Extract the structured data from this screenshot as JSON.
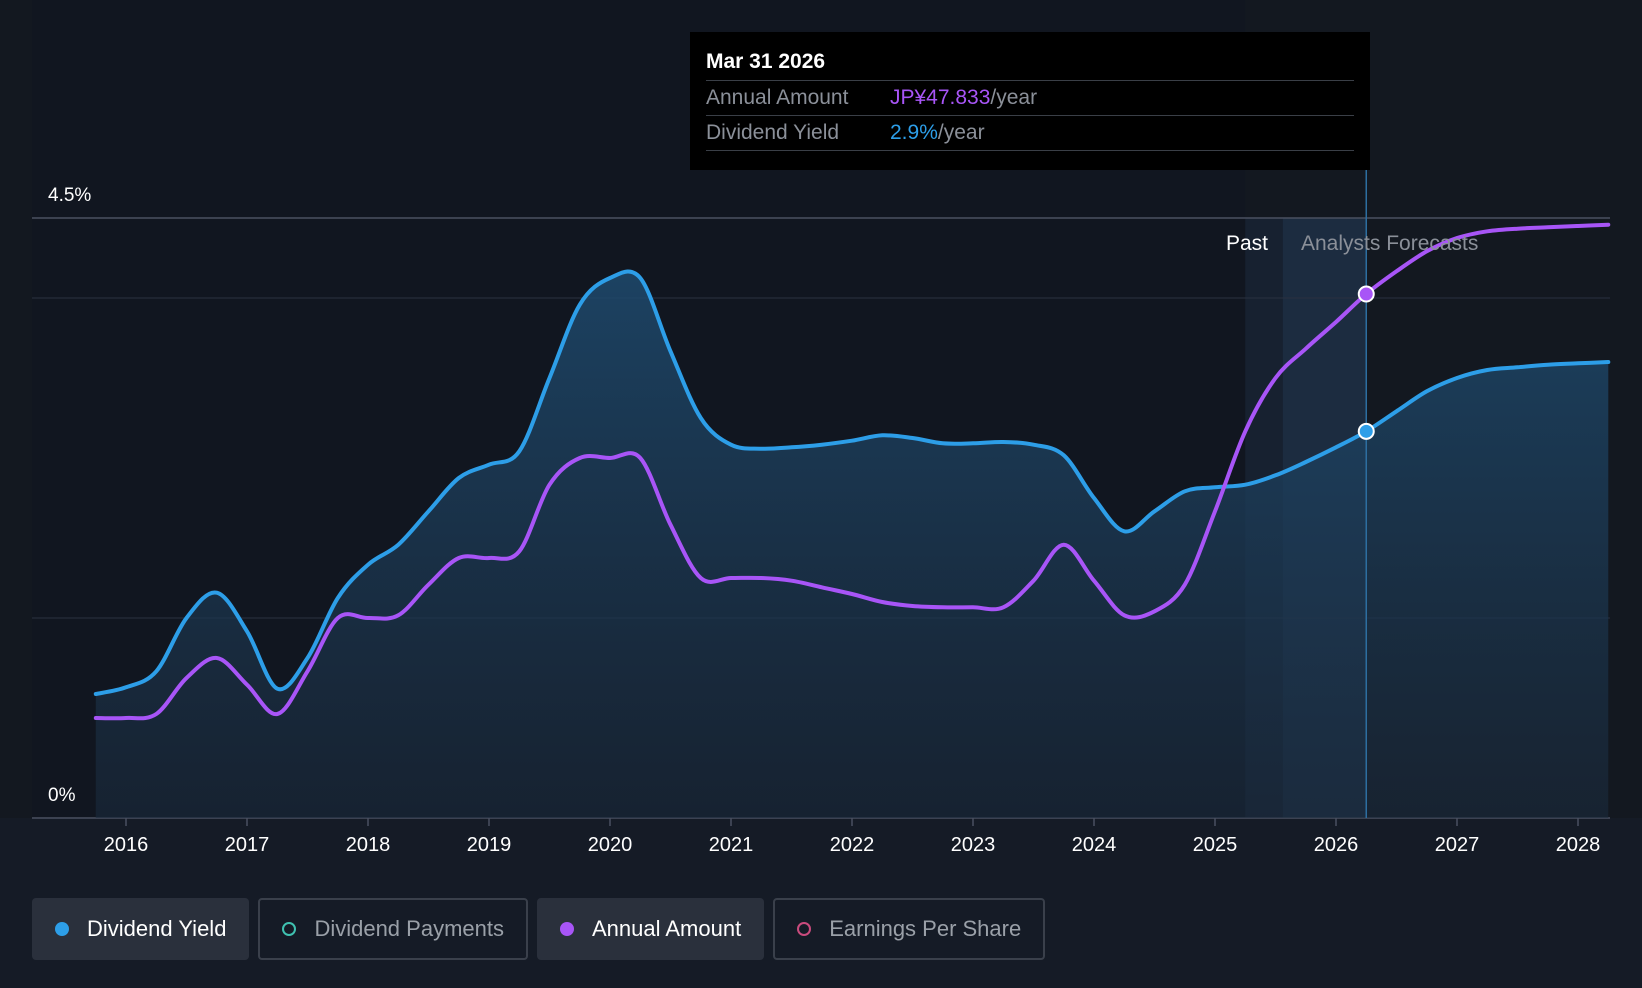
{
  "chart_data": {
    "type": "line",
    "y_axis": {
      "top_label": "4.5%",
      "bottom_label": "0%",
      "ylim": [
        0,
        4.5
      ]
    },
    "x_axis": {
      "ticks": [
        "2016",
        "2017",
        "2018",
        "2019",
        "2020",
        "2021",
        "2022",
        "2023",
        "2024",
        "2025",
        "2026",
        "2027",
        "2028"
      ],
      "xlim": [
        2015.75,
        2028.25
      ]
    },
    "regions": {
      "past_label": "Past",
      "forecast_label": "Analysts Forecasts",
      "past_end": 2025.25,
      "forecast_start": 2025.56,
      "cursor": 2026.25
    },
    "series": [
      {
        "name": "Dividend Yield",
        "color": "#2d9ee8",
        "unit": "%",
        "area": true,
        "points": [
          [
            2015.75,
            0.93
          ],
          [
            2016.0,
            0.98
          ],
          [
            2016.25,
            1.1
          ],
          [
            2016.5,
            1.5
          ],
          [
            2016.75,
            1.69
          ],
          [
            2017.0,
            1.4
          ],
          [
            2017.25,
            0.97
          ],
          [
            2017.5,
            1.2
          ],
          [
            2017.75,
            1.65
          ],
          [
            2018.0,
            1.9
          ],
          [
            2018.25,
            2.05
          ],
          [
            2018.5,
            2.3
          ],
          [
            2018.75,
            2.55
          ],
          [
            2019.0,
            2.65
          ],
          [
            2019.25,
            2.75
          ],
          [
            2019.5,
            3.3
          ],
          [
            2019.75,
            3.85
          ],
          [
            2020.0,
            4.05
          ],
          [
            2020.25,
            4.05
          ],
          [
            2020.5,
            3.5
          ],
          [
            2020.75,
            3.0
          ],
          [
            2021.0,
            2.8
          ],
          [
            2021.25,
            2.77
          ],
          [
            2021.5,
            2.78
          ],
          [
            2021.75,
            2.8
          ],
          [
            2022.0,
            2.83
          ],
          [
            2022.25,
            2.87
          ],
          [
            2022.5,
            2.85
          ],
          [
            2022.75,
            2.81
          ],
          [
            2023.0,
            2.81
          ],
          [
            2023.25,
            2.82
          ],
          [
            2023.5,
            2.8
          ],
          [
            2023.75,
            2.72
          ],
          [
            2024.0,
            2.4
          ],
          [
            2024.25,
            2.15
          ],
          [
            2024.5,
            2.3
          ],
          [
            2024.75,
            2.45
          ],
          [
            2025.0,
            2.48
          ],
          [
            2025.25,
            2.5
          ],
          [
            2025.5,
            2.57
          ],
          [
            2025.75,
            2.67
          ],
          [
            2026.0,
            2.78
          ],
          [
            2026.25,
            2.9
          ],
          [
            2026.5,
            3.05
          ],
          [
            2026.75,
            3.2
          ],
          [
            2027.0,
            3.3
          ],
          [
            2027.25,
            3.36
          ],
          [
            2027.5,
            3.38
          ],
          [
            2027.75,
            3.4
          ],
          [
            2028.0,
            3.41
          ],
          [
            2028.25,
            3.42
          ]
        ]
      },
      {
        "name": "Annual Amount",
        "color": "#a855f7",
        "unit": "JP¥",
        "area": false,
        "points": [
          [
            2015.75,
            0.75
          ],
          [
            2016.0,
            0.75
          ],
          [
            2016.25,
            0.78
          ],
          [
            2016.5,
            1.05
          ],
          [
            2016.75,
            1.2
          ],
          [
            2017.0,
            1.0
          ],
          [
            2017.25,
            0.78
          ],
          [
            2017.5,
            1.1
          ],
          [
            2017.75,
            1.5
          ],
          [
            2018.0,
            1.5
          ],
          [
            2018.25,
            1.52
          ],
          [
            2018.5,
            1.75
          ],
          [
            2018.75,
            1.95
          ],
          [
            2019.0,
            1.95
          ],
          [
            2019.25,
            2.0
          ],
          [
            2019.5,
            2.5
          ],
          [
            2019.75,
            2.7
          ],
          [
            2020.0,
            2.7
          ],
          [
            2020.25,
            2.7
          ],
          [
            2020.5,
            2.2
          ],
          [
            2020.75,
            1.8
          ],
          [
            2021.0,
            1.8
          ],
          [
            2021.25,
            1.8
          ],
          [
            2021.5,
            1.78
          ],
          [
            2021.75,
            1.73
          ],
          [
            2022.0,
            1.68
          ],
          [
            2022.25,
            1.62
          ],
          [
            2022.5,
            1.59
          ],
          [
            2022.75,
            1.58
          ],
          [
            2023.0,
            1.58
          ],
          [
            2023.25,
            1.58
          ],
          [
            2023.5,
            1.78
          ],
          [
            2023.75,
            2.05
          ],
          [
            2024.0,
            1.78
          ],
          [
            2024.25,
            1.52
          ],
          [
            2024.5,
            1.55
          ],
          [
            2024.75,
            1.75
          ],
          [
            2025.0,
            2.3
          ],
          [
            2025.25,
            2.9
          ],
          [
            2025.5,
            3.3
          ],
          [
            2025.75,
            3.52
          ],
          [
            2026.0,
            3.72
          ],
          [
            2026.25,
            3.93
          ],
          [
            2026.5,
            4.1
          ],
          [
            2026.75,
            4.25
          ],
          [
            2027.0,
            4.35
          ],
          [
            2027.25,
            4.4
          ],
          [
            2027.5,
            4.42
          ],
          [
            2027.75,
            4.43
          ],
          [
            2028.0,
            4.44
          ],
          [
            2028.25,
            4.45
          ]
        ]
      }
    ],
    "tooltip": {
      "date": "Mar 31 2026",
      "amount_label": "Annual Amount",
      "amount_value": "JP¥47.833",
      "amount_unit": "/year",
      "yield_label": "Dividend Yield",
      "yield_value": "2.9%",
      "yield_unit": "/year"
    },
    "legend": [
      {
        "label": "Dividend Yield",
        "color": "#2d9ee8",
        "active": true,
        "filled": true
      },
      {
        "label": "Dividend Payments",
        "color": "#3fc1b0",
        "active": false,
        "filled": false
      },
      {
        "label": "Annual Amount",
        "color": "#a855f7",
        "active": true,
        "filled": true
      },
      {
        "label": "Earnings Per Share",
        "color": "#c94b7d",
        "active": false,
        "filled": false
      }
    ]
  }
}
